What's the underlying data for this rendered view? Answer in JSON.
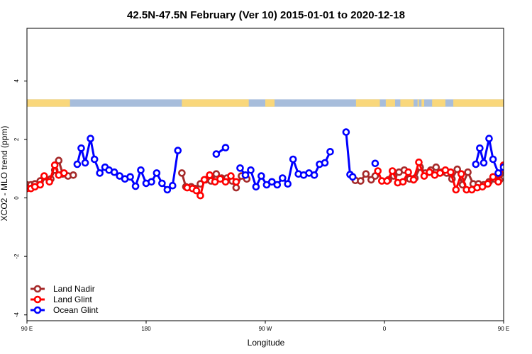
{
  "chart_data": {
    "type": "line",
    "title": "42.5N-47.5N February (Ver 10)   2015-01-01 to 2020-12-18",
    "xlabel": "Longitude",
    "ylabel": "XCO2 - MLO trend (ppm)",
    "xlim": [
      90,
      450
    ],
    "ylim": [
      -4.2,
      5.8
    ],
    "x_ticks": [
      {
        "value": 90,
        "label": "90 E"
      },
      {
        "value": 180,
        "label": "180"
      },
      {
        "value": 270,
        "label": "90 W"
      },
      {
        "value": 360,
        "label": "0"
      },
      {
        "value": 450,
        "label": "90 E"
      },
      {
        "value": 540,
        "label": "180"
      }
    ],
    "y_ticks": [
      {
        "value": -4,
        "label": "-4"
      },
      {
        "value": -2,
        "label": "-2"
      },
      {
        "value": 0,
        "label": "0"
      },
      {
        "value": 2,
        "label": "2"
      },
      {
        "value": 4,
        "label": "4"
      }
    ],
    "grid": false,
    "legend_position": "bottom-left",
    "landmask": {
      "y_range": [
        3.12,
        3.37
      ],
      "land_color": "#f9d77b",
      "ocean_color": "#a7bddb",
      "land_segments": [
        [
          90,
          122.5
        ],
        [
          207,
          257.5
        ],
        [
          270,
          277
        ],
        [
          338.5,
          356.5
        ],
        [
          361,
          368
        ],
        [
          372,
          382
        ],
        [
          385,
          386
        ],
        [
          388,
          390
        ],
        [
          396,
          406
        ],
        [
          412,
          512
        ]
      ]
    },
    "series": [
      {
        "name": "Land Nadir",
        "color": "#a52a2a",
        "segments": [
          [
            [
              90,
              0.45
            ],
            [
              93,
              0.45
            ],
            [
              96,
              0.48
            ],
            [
              100,
              0.58
            ],
            [
              103,
              0.72
            ],
            [
              108,
              0.65
            ],
            [
              111,
              0.95
            ],
            [
              114,
              1.28
            ],
            [
              117,
              0.82
            ],
            [
              121,
              0.75
            ],
            [
              125,
              0.78
            ]
          ],
          [
            [
              207,
              0.85
            ],
            [
              210,
              0.38
            ],
            [
              214,
              0.38
            ],
            [
              217,
              0.32
            ],
            [
              221,
              0.48
            ],
            [
              225,
              0.62
            ],
            [
              229,
              0.58
            ],
            [
              233,
              0.82
            ],
            [
              237,
              0.68
            ],
            [
              241,
              0.68
            ],
            [
              245,
              0.58
            ],
            [
              248,
              0.35
            ],
            [
              252,
              0.75
            ],
            [
              256,
              0.65
            ]
          ],
          [
            [
              338,
              0.6
            ],
            [
              342,
              0.58
            ],
            [
              346,
              0.82
            ],
            [
              350,
              0.62
            ],
            [
              353,
              0.75
            ]
          ],
          [
            [
              363,
              0.62
            ],
            [
              367,
              0.75
            ],
            [
              371,
              0.88
            ],
            [
              375,
              0.95
            ],
            [
              379,
              0.65
            ],
            [
              383,
              0.68
            ],
            [
              387,
              1.05
            ],
            [
              391,
              0.85
            ],
            [
              395,
              0.95
            ],
            [
              399,
              1.05
            ],
            [
              403,
              0.88
            ],
            [
              407,
              0.85
            ],
            [
              411,
              0.65
            ],
            [
              415,
              0.98
            ],
            [
              419,
              0.45
            ],
            [
              423,
              0.88
            ],
            [
              427,
              0.48
            ],
            [
              431,
              0.48
            ],
            [
              435,
              0.45
            ],
            [
              439,
              0.55
            ],
            [
              443,
              0.65
            ],
            [
              447,
              0.62
            ],
            [
              451,
              0.92
            ],
            [
              455,
              1.28
            ],
            [
              459,
              0.82
            ],
            [
              463,
              0.72
            ],
            [
              467,
              0.78
            ]
          ]
        ]
      },
      {
        "name": "Land Glint",
        "color": "#ff0000",
        "segments": [
          [
            [
              90,
              0.32
            ],
            [
              93,
              0.32
            ],
            [
              96,
              0.38
            ],
            [
              100,
              0.45
            ],
            [
              103,
              0.75
            ],
            [
              107,
              0.55
            ],
            [
              111,
              1.12
            ],
            [
              114,
              0.78
            ],
            [
              118,
              0.85
            ]
          ],
          [
            [
              211,
              0.35
            ],
            [
              215,
              0.32
            ],
            [
              218,
              0.25
            ],
            [
              221,
              0.08
            ],
            [
              224,
              0.62
            ],
            [
              228,
              0.78
            ],
            [
              232,
              0.55
            ],
            [
              236,
              0.65
            ],
            [
              240,
              0.55
            ],
            [
              244,
              0.75
            ],
            [
              248,
              0.55
            ]
          ],
          [
            [
              355,
              0.92
            ],
            [
              358,
              0.58
            ],
            [
              362,
              0.58
            ],
            [
              366,
              0.92
            ],
            [
              370,
              0.52
            ],
            [
              374,
              0.55
            ],
            [
              378,
              0.88
            ],
            [
              382,
              0.62
            ],
            [
              386,
              1.22
            ],
            [
              390,
              0.75
            ],
            [
              394,
              0.88
            ],
            [
              398,
              0.78
            ],
            [
              402,
              0.85
            ],
            [
              406,
              0.95
            ],
            [
              410,
              0.88
            ],
            [
              414,
              0.28
            ],
            [
              418,
              0.82
            ],
            [
              422,
              0.28
            ],
            [
              426,
              0.28
            ],
            [
              430,
              0.35
            ],
            [
              434,
              0.38
            ],
            [
              438,
              0.48
            ],
            [
              442,
              0.72
            ],
            [
              446,
              0.55
            ],
            [
              450,
              1.12
            ],
            [
              454,
              0.68
            ],
            [
              458,
              0.82
            ]
          ]
        ]
      },
      {
        "name": "Ocean Glint",
        "color": "#0000ff",
        "segments": [
          [
            [
              128,
              1.15
            ],
            [
              131,
              1.7
            ],
            [
              134,
              1.2
            ],
            [
              138,
              2.03
            ],
            [
              141,
              1.32
            ],
            [
              145,
              0.85
            ],
            [
              149,
              1.05
            ],
            [
              152,
              0.95
            ],
            [
              156,
              0.88
            ],
            [
              160,
              0.75
            ],
            [
              164,
              0.65
            ],
            [
              168,
              0.72
            ],
            [
              172,
              0.4
            ],
            [
              176,
              0.95
            ],
            [
              180,
              0.5
            ],
            [
              184,
              0.55
            ],
            [
              188,
              0.85
            ],
            [
              192,
              0.5
            ],
            [
              196,
              0.28
            ],
            [
              200,
              0.42
            ],
            [
              204,
              1.62
            ]
          ],
          [
            [
              233,
              1.5
            ],
            [
              240,
              1.72
            ]
          ],
          [
            [
              251,
              1.02
            ],
            [
              255,
              0.78
            ],
            [
              259,
              0.95
            ],
            [
              263,
              0.38
            ],
            [
              267,
              0.75
            ],
            [
              271,
              0.45
            ],
            [
              275,
              0.55
            ],
            [
              279,
              0.45
            ],
            [
              283,
              0.68
            ],
            [
              287,
              0.48
            ],
            [
              291,
              1.32
            ],
            [
              295,
              0.82
            ],
            [
              299,
              0.78
            ],
            [
              303,
              0.85
            ],
            [
              307,
              0.78
            ],
            [
              311,
              1.15
            ],
            [
              315,
              1.2
            ],
            [
              319,
              1.58
            ]
          ],
          [
            [
              331,
              2.25
            ],
            [
              334,
              0.8
            ],
            [
              336,
              0.72
            ]
          ],
          [
            [
              353,
              1.18
            ]
          ],
          [
            [
              429,
              1.15
            ],
            [
              432,
              1.7
            ],
            [
              435,
              1.2
            ],
            [
              439,
              2.03
            ],
            [
              442,
              1.32
            ],
            [
              446,
              0.85
            ],
            [
              450,
              1.05
            ],
            [
              453,
              0.95
            ],
            [
              457,
              0.88
            ],
            [
              461,
              0.75
            ]
          ]
        ]
      }
    ]
  }
}
